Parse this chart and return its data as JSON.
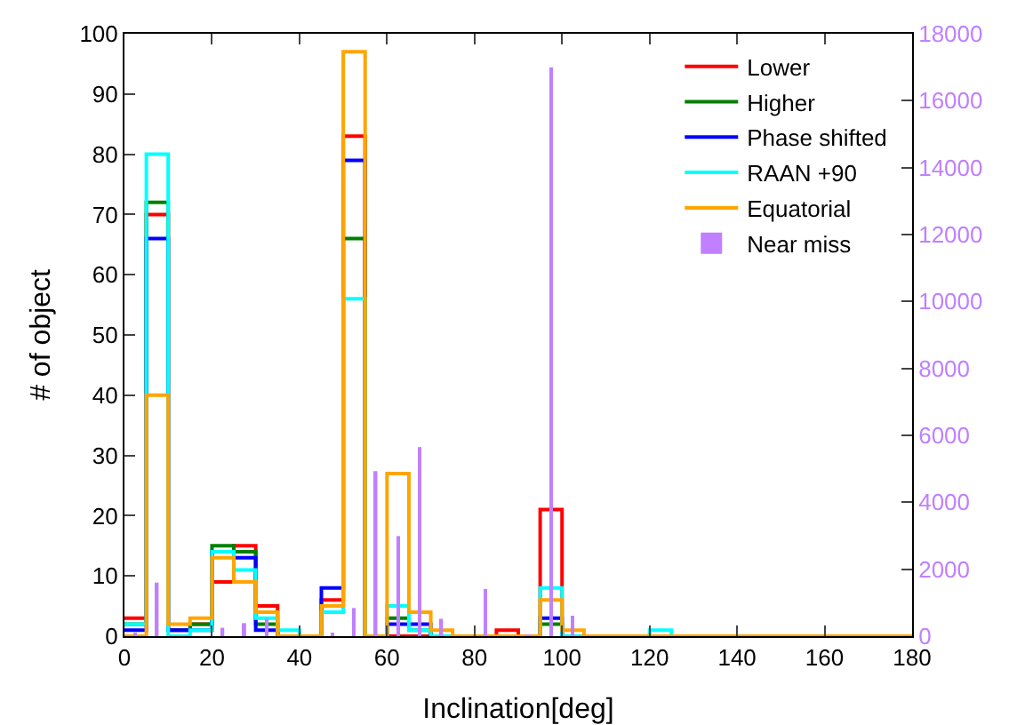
{
  "chart_data": {
    "type": "histogram",
    "xlabel": "Inclination[deg]",
    "ylabel": "# of object",
    "bins": [
      0,
      5,
      10,
      15,
      20,
      25,
      30,
      35,
      40,
      45,
      50,
      55,
      60,
      65,
      70,
      75,
      80,
      85,
      90,
      95,
      100,
      105,
      110,
      115,
      120,
      125,
      130,
      135,
      140,
      145,
      150,
      155,
      160,
      165,
      170,
      175,
      180
    ],
    "series": [
      {
        "name": "Lower",
        "color": "#ff0000",
        "values": [
          3,
          70,
          1,
          2,
          9,
          15,
          5,
          0,
          0,
          6,
          83,
          0,
          0,
          0,
          0,
          0,
          0,
          1,
          0,
          21,
          0,
          0,
          0,
          0,
          0,
          0,
          0,
          0,
          0,
          0,
          0,
          0,
          0,
          0,
          0,
          0
        ]
      },
      {
        "name": "Higher",
        "color": "#008000",
        "values": [
          2,
          72,
          1,
          2,
          15,
          14,
          2,
          0,
          0,
          5,
          66,
          0,
          3,
          1,
          0,
          0,
          0,
          0,
          0,
          2,
          0,
          0,
          0,
          0,
          0,
          0,
          0,
          0,
          0,
          0,
          0,
          0,
          0,
          0,
          0,
          0
        ]
      },
      {
        "name": "Phase shifted",
        "color": "#0000ff",
        "values": [
          1,
          66,
          1,
          1,
          14,
          13,
          1,
          0,
          0,
          8,
          79,
          0,
          2,
          2,
          0,
          0,
          0,
          0,
          0,
          3,
          0,
          0,
          0,
          0,
          0,
          0,
          0,
          0,
          0,
          0,
          0,
          0,
          0,
          0,
          0,
          0
        ]
      },
      {
        "name": "RAAN +90",
        "color": "#00ffff",
        "values": [
          2,
          80,
          0,
          1,
          14,
          11,
          3,
          1,
          0,
          4,
          56,
          0,
          5,
          1,
          0,
          0,
          0,
          0,
          0,
          8,
          0,
          0,
          0,
          0,
          1,
          0,
          0,
          0,
          0,
          0,
          0,
          0,
          0,
          0,
          0,
          0
        ]
      },
      {
        "name": "Equatorial",
        "color": "#ffa500",
        "values": [
          0,
          40,
          2,
          3,
          13,
          9,
          4,
          0,
          0,
          5,
          97,
          0,
          27,
          4,
          1,
          0,
          0,
          0,
          0,
          6,
          1,
          0,
          0,
          0,
          0,
          0,
          0,
          0,
          0,
          0,
          0,
          0,
          0,
          0,
          0,
          0
        ]
      },
      {
        "name": "Near miss",
        "type": "bar",
        "axis": "y2",
        "color": "#c080ff",
        "x": [
          2.5,
          7.5,
          22.5,
          27.5,
          32.5,
          47.5,
          52.5,
          57.5,
          62.5,
          67.5,
          72.5,
          82.5,
          92.5,
          97.5,
          102.5
        ],
        "values": [
          100,
          1600,
          250,
          390,
          520,
          100,
          840,
          4930,
          2990,
          5650,
          520,
          1410,
          50,
          17000,
          610
        ]
      }
    ],
    "xlim": [
      0,
      180
    ],
    "xticks": [
      0,
      20,
      40,
      60,
      80,
      100,
      120,
      140,
      160,
      180
    ],
    "ylim": [
      0,
      100
    ],
    "yticks": [
      0,
      10,
      20,
      30,
      40,
      50,
      60,
      70,
      80,
      90,
      100
    ],
    "y2lim": [
      0,
      18000
    ],
    "y2ticks": [
      0,
      2000,
      4000,
      6000,
      8000,
      10000,
      12000,
      14000,
      16000,
      18000
    ],
    "grid": false,
    "legend": "top right"
  }
}
